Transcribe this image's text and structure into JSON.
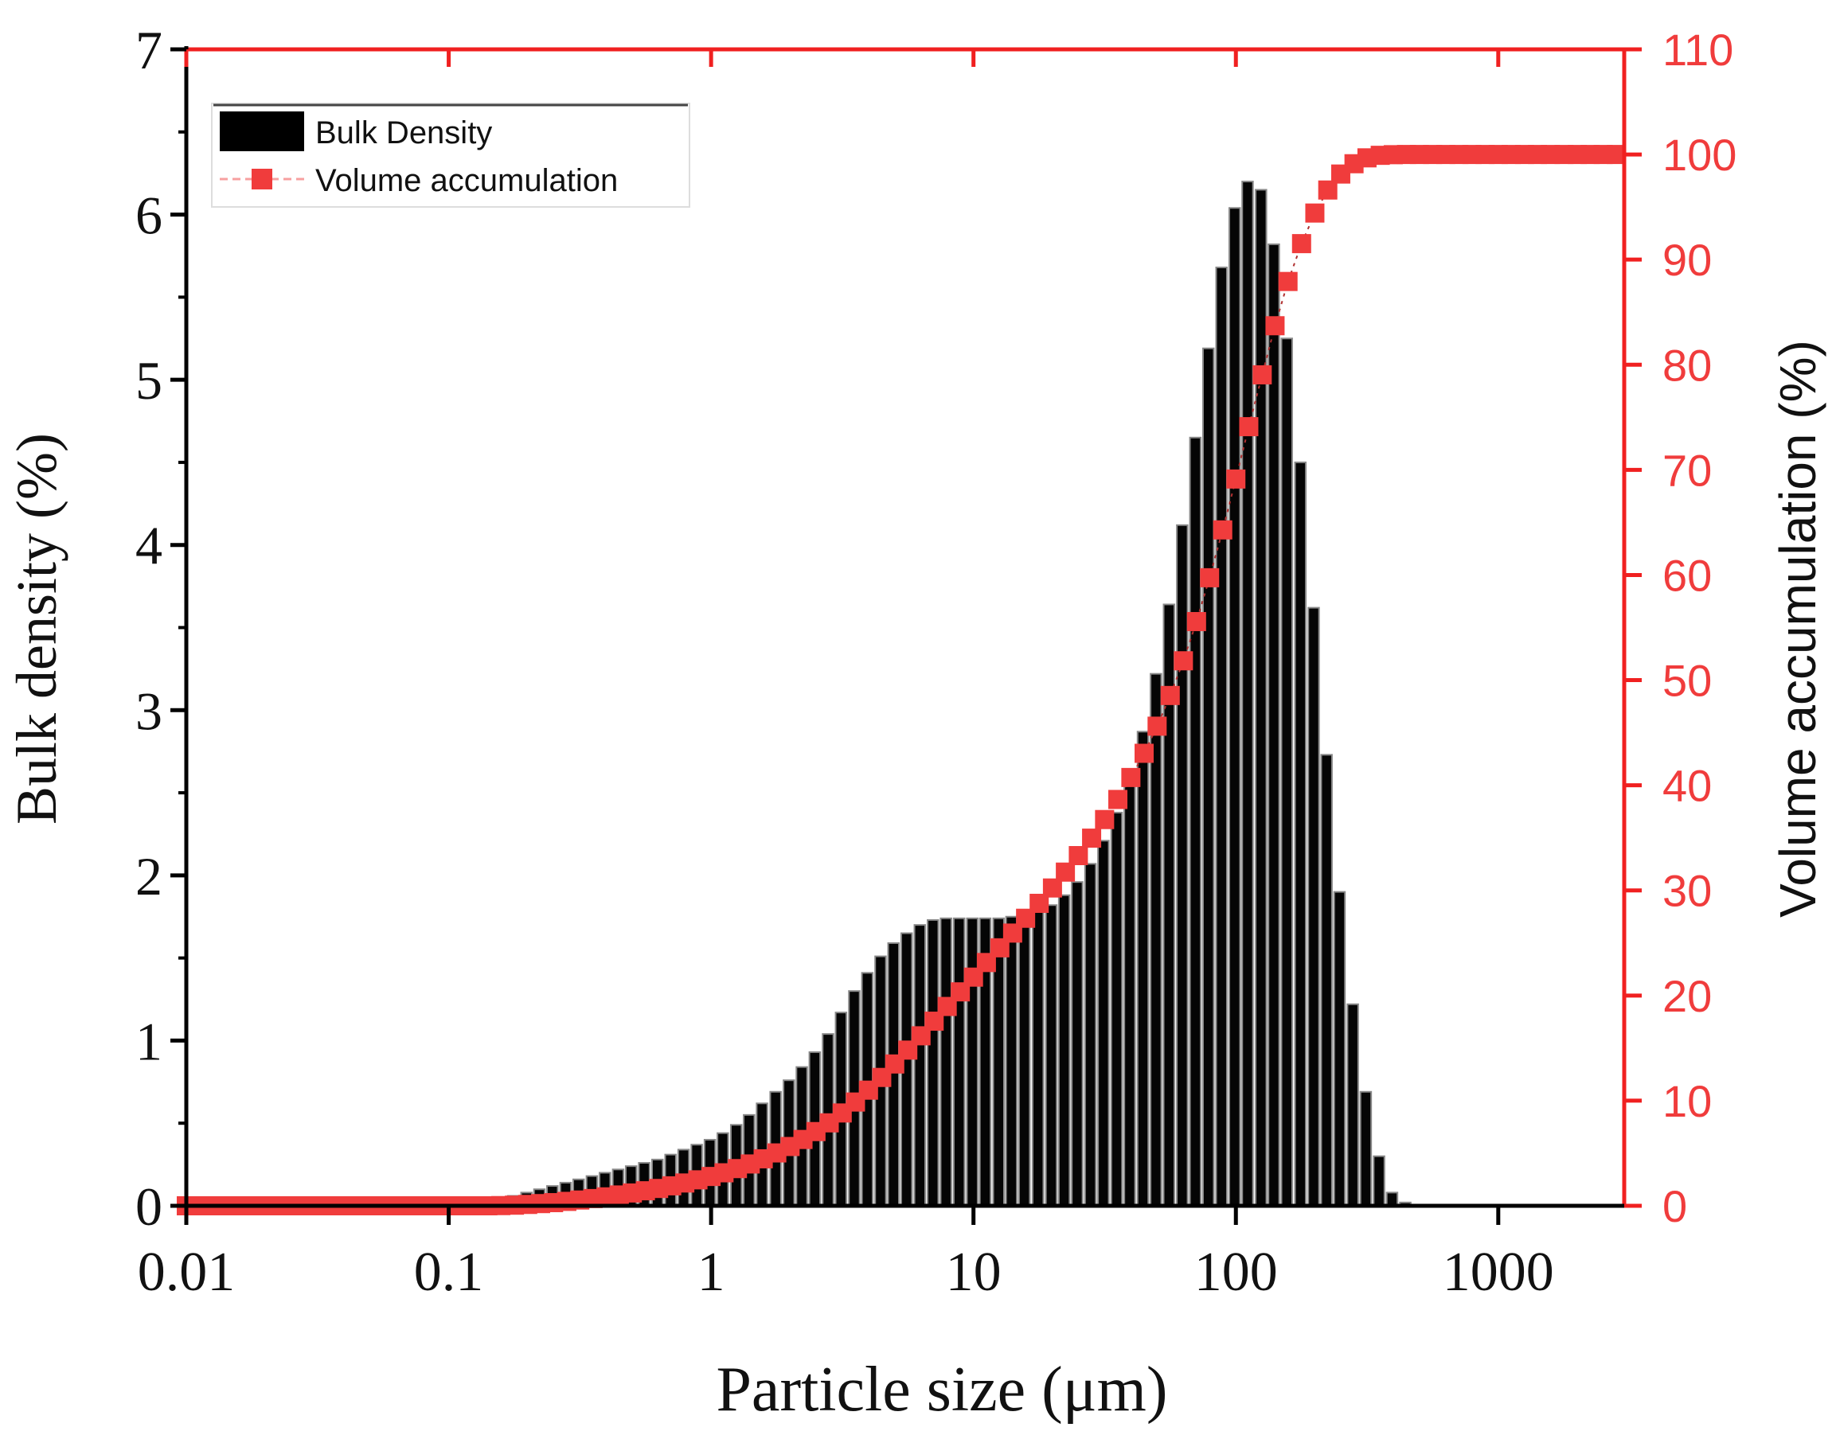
{
  "chart_data": {
    "type": "bar+scatter",
    "xlabel": "Particle size (μm)",
    "ylabel_left": "Bulk density (%)",
    "ylabel_right": "Volume accumulation (%)",
    "x_scale": "log",
    "xlim": [
      0.01,
      3020
    ],
    "ylim_left": [
      0,
      7
    ],
    "ylim_right": [
      0,
      110
    ],
    "x_ticks": [
      "0.01",
      "0.1",
      "1",
      "10",
      "100",
      "1000"
    ],
    "y_ticks_left": [
      "0",
      "1",
      "2",
      "3",
      "4",
      "5",
      "6",
      "7"
    ],
    "y_ticks_right": [
      "0",
      "10",
      "20",
      "30",
      "40",
      "50",
      "60",
      "70",
      "80",
      "90",
      "100",
      "110"
    ],
    "legend_position": "top-left",
    "grid": false,
    "colors": {
      "bars": "#000000",
      "cumulative": "#f03c3c",
      "right_axis": "#f03c3c"
    },
    "series": [
      {
        "name": "Bulk Density",
        "type": "bar",
        "axis": "left",
        "x": [
          0.158,
          0.178,
          0.2,
          0.224,
          0.251,
          0.282,
          0.316,
          0.355,
          0.398,
          0.447,
          0.501,
          0.562,
          0.631,
          0.708,
          0.794,
          0.891,
          1,
          1.12,
          1.26,
          1.41,
          1.58,
          1.78,
          2,
          2.24,
          2.51,
          2.82,
          3.16,
          3.55,
          3.98,
          4.47,
          5.01,
          5.62,
          6.31,
          7.08,
          7.94,
          8.91,
          10,
          11.2,
          12.6,
          14.1,
          15.8,
          17.8,
          20,
          22.4,
          25.1,
          28.2,
          31.6,
          35.5,
          39.8,
          44.7,
          50.1,
          56.2,
          63.1,
          70.8,
          79.4,
          89.1,
          100,
          112,
          126,
          141,
          158,
          178,
          200,
          224,
          251,
          282,
          316,
          355,
          398,
          447
        ],
        "values": [
          0.02,
          0.06,
          0.08,
          0.1,
          0.12,
          0.14,
          0.16,
          0.18,
          0.2,
          0.22,
          0.24,
          0.26,
          0.28,
          0.31,
          0.34,
          0.37,
          0.4,
          0.44,
          0.49,
          0.55,
          0.62,
          0.69,
          0.76,
          0.84,
          0.93,
          1.04,
          1.17,
          1.3,
          1.41,
          1.51,
          1.59,
          1.65,
          1.7,
          1.73,
          1.74,
          1.74,
          1.74,
          1.74,
          1.74,
          1.75,
          1.75,
          1.78,
          1.82,
          1.88,
          1.96,
          2.07,
          2.21,
          2.38,
          2.6,
          2.87,
          3.22,
          3.64,
          4.12,
          4.65,
          5.19,
          5.68,
          6.04,
          6.2,
          6.15,
          5.82,
          5.25,
          4.5,
          3.62,
          2.73,
          1.9,
          1.22,
          0.69,
          0.3,
          0.08,
          0.02
        ]
      },
      {
        "name": "Volume accumulation",
        "type": "scatter-line",
        "axis": "right",
        "x": [
          0.01,
          0.0112,
          0.0126,
          0.0141,
          0.0158,
          0.0178,
          0.02,
          0.0224,
          0.0251,
          0.0282,
          0.0316,
          0.0355,
          0.0398,
          0.0447,
          0.0501,
          0.0562,
          0.0631,
          0.0708,
          0.0794,
          0.0891,
          0.1,
          0.112,
          0.126,
          0.141,
          0.158,
          0.178,
          0.2,
          0.224,
          0.251,
          0.282,
          0.316,
          0.355,
          0.398,
          0.447,
          0.501,
          0.562,
          0.631,
          0.708,
          0.794,
          0.891,
          1,
          1.12,
          1.26,
          1.41,
          1.58,
          1.78,
          2,
          2.24,
          2.51,
          2.82,
          3.16,
          3.55,
          3.98,
          4.47,
          5.01,
          5.62,
          6.31,
          7.08,
          7.94,
          8.91,
          10,
          11.2,
          12.6,
          14.1,
          15.8,
          17.8,
          20,
          22.4,
          25.1,
          28.2,
          31.6,
          35.5,
          39.8,
          44.7,
          50.1,
          56.2,
          63.1,
          70.8,
          79.4,
          89.1,
          100,
          112,
          126,
          141,
          158,
          178,
          200,
          224,
          251,
          282,
          316,
          355,
          398,
          447,
          501,
          562,
          631,
          708,
          794,
          891,
          1000,
          1120,
          1260,
          1410,
          1580,
          1780,
          2000,
          2240,
          2510,
          2820
        ],
        "values": [
          0,
          0,
          0,
          0,
          0,
          0,
          0,
          0,
          0,
          0,
          0,
          0,
          0,
          0,
          0,
          0,
          0,
          0,
          0,
          0,
          0,
          0,
          0,
          0,
          0.02,
          0.06,
          0.13,
          0.21,
          0.3,
          0.42,
          0.55,
          0.69,
          0.85,
          1.03,
          1.22,
          1.43,
          1.65,
          1.9,
          2.17,
          2.47,
          2.79,
          3.14,
          3.54,
          3.98,
          4.47,
          5.03,
          5.64,
          6.31,
          7.06,
          7.89,
          8.83,
          9.87,
          11.0,
          12.21,
          13.49,
          14.81,
          16.17,
          17.56,
          18.96,
          20.35,
          21.75,
          23.14,
          24.54,
          25.94,
          27.35,
          28.77,
          30.23,
          31.74,
          33.31,
          34.97,
          36.74,
          38.65,
          40.74,
          43.04,
          45.62,
          48.54,
          51.84,
          55.57,
          59.74,
          64.29,
          69.13,
          74.11,
          79.04,
          83.71,
          87.92,
          91.52,
          94.43,
          96.62,
          98.14,
          99.12,
          99.68,
          99.92,
          99.98,
          100,
          100,
          100,
          100,
          100,
          100,
          100,
          100,
          100,
          100,
          100,
          100,
          100,
          100,
          100,
          100,
          100
        ]
      }
    ]
  }
}
